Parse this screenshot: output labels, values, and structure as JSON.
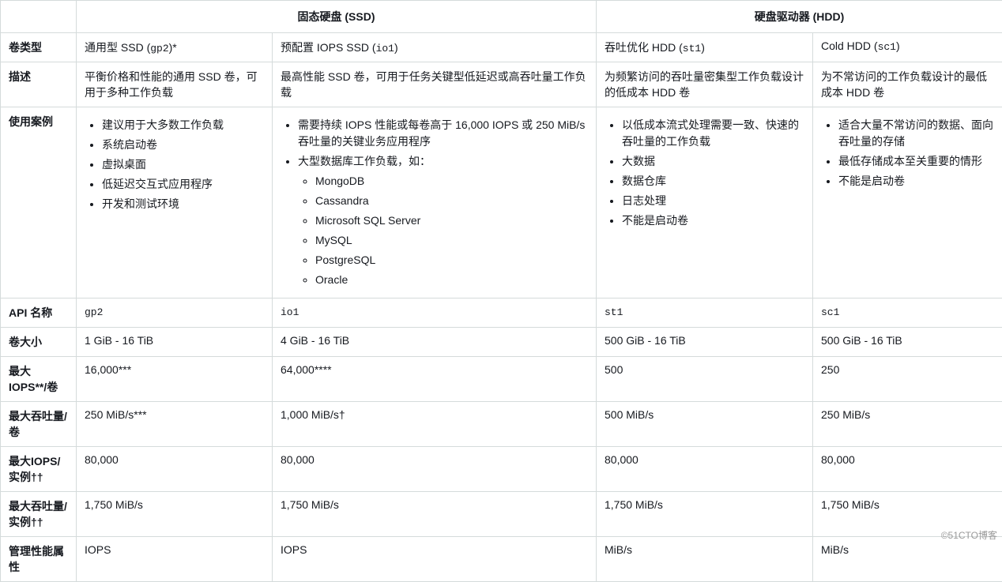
{
  "headers": {
    "ssd": "固态硬盘 (SSD)",
    "hdd": "硬盘驱动器 (HDD)"
  },
  "rows": {
    "volume_type": {
      "label": "卷类型",
      "gp2_prefix": "通用型 SSD (",
      "gp2_code": "gp2",
      "gp2_suffix": ")*",
      "io1_prefix": "预配置 IOPS SSD (",
      "io1_code": "io1",
      "io1_suffix": ")",
      "st1_prefix": "吞吐优化 HDD (",
      "st1_code": "st1",
      "st1_suffix": ")",
      "sc1_prefix": "Cold HDD (",
      "sc1_code": "sc1",
      "sc1_suffix": ")"
    },
    "description": {
      "label": "描述",
      "gp2": "平衡价格和性能的通用 SSD 卷，可用于多种工作负载",
      "io1": "最高性能 SSD 卷，可用于任务关键型低延迟或高吞吐量工作负载",
      "st1": "为频繁访问的吞吐量密集型工作负载设计的低成本 HDD 卷",
      "sc1": "为不常访问的工作负载设计的最低成本 HDD 卷"
    },
    "use_cases": {
      "label": "使用案例",
      "gp2": [
        "建议用于大多数工作负载",
        "系统启动卷",
        "虚拟桌面",
        "低延迟交互式应用程序",
        "开发和测试环境"
      ],
      "io1": [
        "需要持续 IOPS 性能或每卷高于 16,000 IOPS 或 250 MiB/s 吞吐量的关键业务应用程序",
        "大型数据库工作负载，如："
      ],
      "io1_sub": [
        "MongoDB",
        "Cassandra",
        "Microsoft SQL Server",
        "MySQL",
        "PostgreSQL",
        "Oracle"
      ],
      "st1": [
        "以低成本流式处理需要一致、快速的吞吐量的工作负载",
        "大数据",
        "数据仓库",
        "日志处理",
        "不能是启动卷"
      ],
      "sc1": [
        "适合大量不常访问的数据、面向吞吐量的存储",
        "最低存储成本至关重要的情形",
        "不能是启动卷"
      ]
    },
    "api_name": {
      "label": "API 名称",
      "gp2": "gp2",
      "io1": "io1",
      "st1": "st1",
      "sc1": "sc1"
    },
    "volume_size": {
      "label": "卷大小",
      "gp2": "1 GiB - 16 TiB",
      "io1": "4 GiB - 16 TiB",
      "st1": "500 GiB - 16 TiB",
      "sc1": "500 GiB - 16 TiB"
    },
    "max_iops": {
      "label": "最大 IOPS**/卷",
      "gp2": "16,000***",
      "io1": "64,000****",
      "st1": "500",
      "sc1": "250"
    },
    "max_throughput": {
      "label": "最大吞吐量/卷",
      "gp2": "250 MiB/s***",
      "io1": "1,000 MiB/s†",
      "st1": "500 MiB/s",
      "sc1": "250 MiB/s"
    },
    "max_iops_instance": {
      "label": "最大IOPS/实例††",
      "gp2": "80,000",
      "io1": "80,000",
      "st1": "80,000",
      "sc1": "80,000"
    },
    "max_throughput_instance": {
      "label": "最大吞吐量/实例††",
      "gp2": "1,750 MiB/s",
      "io1": "1,750 MiB/s",
      "st1": "1,750 MiB/s",
      "sc1": "1,750 MiB/s"
    },
    "perf_attr": {
      "label": "管理性能属性",
      "gp2": "IOPS",
      "io1": "IOPS",
      "st1": "MiB/s",
      "sc1": "MiB/s"
    }
  },
  "watermark": "©51CTO博客"
}
